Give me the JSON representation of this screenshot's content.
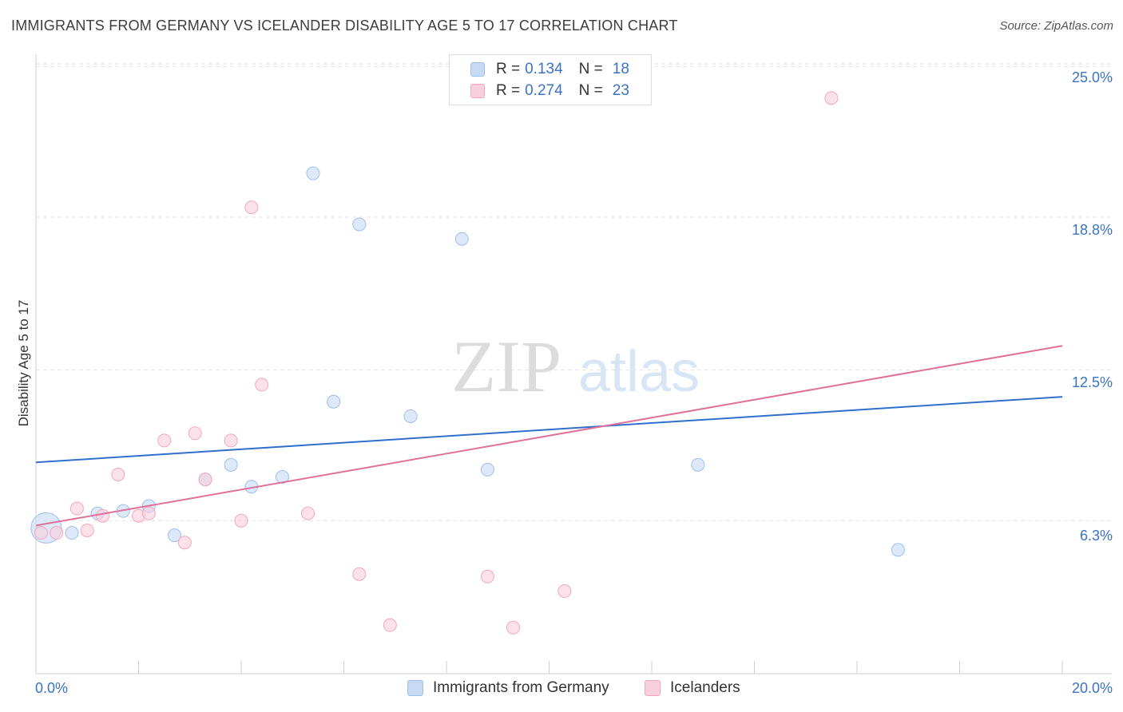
{
  "chart_data": {
    "type": "scatter",
    "title": "IMMIGRANTS FROM GERMANY VS ICELANDER DISABILITY AGE 5 TO 17 CORRELATION CHART",
    "source": "Source: ZipAtlas.com",
    "ylabel": "Disability Age 5 to 17",
    "xlabel": "",
    "xlim": [
      0,
      20
    ],
    "ylim": [
      0,
      25.7
    ],
    "x_tick_labels": [
      {
        "value": 0,
        "label": "0.0%"
      },
      {
        "value": 20,
        "label": "20.0%"
      }
    ],
    "y_tick_labels": [
      {
        "value": 25.0,
        "label": "25.0%"
      },
      {
        "value": 18.8,
        "label": "18.8%"
      },
      {
        "value": 12.5,
        "label": "12.5%"
      },
      {
        "value": 6.3,
        "label": "6.3%"
      }
    ],
    "grid": "horizontal dashed",
    "legend": {
      "placement": "top-center",
      "entries": [
        {
          "r_label": "R =",
          "r_value": "0.134",
          "n_label": "N =",
          "n_value": "18"
        },
        {
          "r_label": "R =",
          "r_value": "0.274",
          "n_label": "N =",
          "n_value": "23"
        }
      ]
    },
    "series": [
      {
        "name": "Immigrants from Germany",
        "color": "#9dbfea",
        "fill": "#c6daf5",
        "line_color": "#2f6fcb",
        "trend": [
          [
            0,
            8.7
          ],
          [
            20,
            11.4
          ]
        ],
        "points": [
          [
            0.2,
            6.0
          ],
          [
            0.7,
            5.8
          ],
          [
            1.2,
            6.6
          ],
          [
            1.7,
            6.7
          ],
          [
            2.2,
            6.9
          ],
          [
            2.7,
            5.7
          ],
          [
            3.3,
            8.0
          ],
          [
            3.8,
            8.6
          ],
          [
            4.2,
            7.7
          ],
          [
            4.8,
            8.1
          ],
          [
            5.4,
            20.6
          ],
          [
            5.8,
            11.2
          ],
          [
            6.3,
            18.5
          ],
          [
            7.3,
            10.6
          ],
          [
            8.3,
            17.9
          ],
          [
            8.8,
            8.4
          ],
          [
            12.9,
            8.6
          ],
          [
            16.8,
            5.1
          ]
        ],
        "sizes": [
          38,
          16,
          16,
          16,
          16,
          16,
          16,
          16,
          16,
          16,
          16,
          16,
          16,
          16,
          16,
          16,
          16,
          16
        ]
      },
      {
        "name": "Icelanders",
        "color": "#f2a6bf",
        "fill": "#f8cfdc",
        "line_color": "#e0709a",
        "trend": [
          [
            0,
            6.1
          ],
          [
            20,
            13.5
          ]
        ],
        "points": [
          [
            0.1,
            5.8
          ],
          [
            0.4,
            5.8
          ],
          [
            0.8,
            6.8
          ],
          [
            1.0,
            5.9
          ],
          [
            1.3,
            6.5
          ],
          [
            1.6,
            8.2
          ],
          [
            2.0,
            6.5
          ],
          [
            2.2,
            6.6
          ],
          [
            2.5,
            9.6
          ],
          [
            2.9,
            5.4
          ],
          [
            3.1,
            9.9
          ],
          [
            3.3,
            8.0
          ],
          [
            3.8,
            9.6
          ],
          [
            4.0,
            6.3
          ],
          [
            4.2,
            19.2
          ],
          [
            4.4,
            11.9
          ],
          [
            5.3,
            6.6
          ],
          [
            6.3,
            4.1
          ],
          [
            6.9,
            2.0
          ],
          [
            8.8,
            4.0
          ],
          [
            9.3,
            1.9
          ],
          [
            10.3,
            3.4
          ],
          [
            15.5,
            23.7
          ]
        ],
        "sizes": [
          16,
          16,
          16,
          16,
          16,
          16,
          16,
          16,
          16,
          16,
          16,
          16,
          16,
          16,
          16,
          16,
          16,
          16,
          16,
          16,
          16,
          16,
          16
        ]
      }
    ]
  },
  "watermark": {
    "zip": "ZIP",
    "atlas": "atlas"
  }
}
